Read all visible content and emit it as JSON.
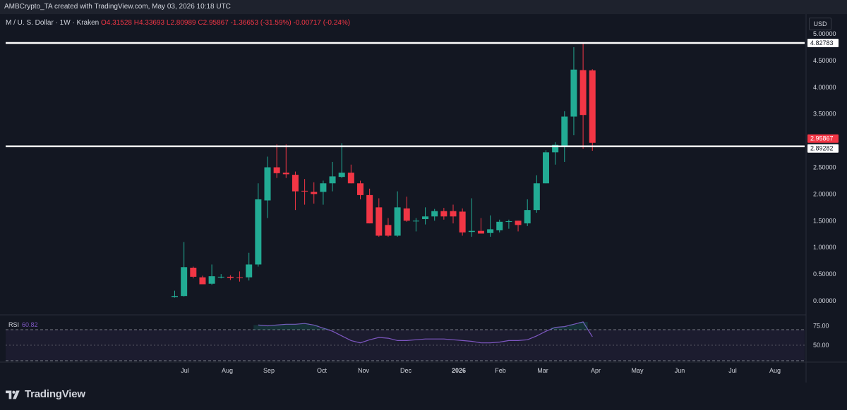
{
  "header": {
    "attribution": "AMBCrypto_TA created with TradingView.com, May 03, 2026 10:18 UTC"
  },
  "legend": {
    "symbol": "M / U. S. Dollar · 1W · Kraken",
    "open": "O4.31528",
    "high": "H4.33693",
    "low": "L2.80989",
    "close": "C2.95867",
    "change": "-1.36653 (-31.59%)",
    "volume_change": "-0.00717 (-0.24%)"
  },
  "currency_button": "USD",
  "brand": {
    "name": "TradingView"
  },
  "colors": {
    "up": "#22ab94",
    "down": "#f23645",
    "background": "#131722",
    "rsi_line": "#7e57c2"
  },
  "chart_data": [
    {
      "type": "candlestick",
      "title": "",
      "xlabel": "",
      "ylabel": "",
      "ylim": [
        -0.1,
        5.0
      ],
      "x_tick_labels": [
        "Jul",
        "Aug",
        "Sep",
        "Oct",
        "Nov",
        "Dec",
        "2026",
        "Feb",
        "Mar",
        "Apr",
        "May",
        "Jun",
        "Jul",
        "Aug"
      ],
      "y_tick_labels": [
        "0.00000",
        "0.50000",
        "1.00000",
        "1.50000",
        "2.00000",
        "2.50000",
        "3.50000",
        "4.00000",
        "4.50000",
        "5.00000"
      ],
      "y_tick_values": [
        0,
        0.5,
        1,
        1.5,
        2,
        2.5,
        3.5,
        4,
        4.5,
        5
      ],
      "price_labels": [
        {
          "text": "4.82783",
          "value": 4.82783,
          "style": "white"
        },
        {
          "text": "2.95867",
          "value": 2.95867,
          "style": "red"
        },
        {
          "text": "2.89282",
          "value": 2.89282,
          "style": "white"
        }
      ],
      "horizontal_lines": [
        4.82783,
        2.89282
      ],
      "candles": [
        {
          "o": 0.07,
          "h": 0.19,
          "l": 0.06,
          "c": 0.09
        },
        {
          "o": 0.09,
          "h": 1.1,
          "l": 0.08,
          "c": 0.63
        },
        {
          "o": 0.62,
          "h": 0.64,
          "l": 0.42,
          "c": 0.45
        },
        {
          "o": 0.44,
          "h": 0.47,
          "l": 0.31,
          "c": 0.31
        },
        {
          "o": 0.32,
          "h": 0.68,
          "l": 0.3,
          "c": 0.46
        },
        {
          "o": 0.44,
          "h": 0.5,
          "l": 0.42,
          "c": 0.45
        },
        {
          "o": 0.45,
          "h": 0.48,
          "l": 0.39,
          "c": 0.43
        },
        {
          "o": 0.44,
          "h": 0.55,
          "l": 0.36,
          "c": 0.43
        },
        {
          "o": 0.44,
          "h": 0.9,
          "l": 0.38,
          "c": 0.68
        },
        {
          "o": 0.68,
          "h": 2.2,
          "l": 0.64,
          "c": 1.9
        },
        {
          "o": 1.88,
          "h": 2.7,
          "l": 1.55,
          "c": 2.5
        },
        {
          "o": 2.5,
          "h": 2.93,
          "l": 2.3,
          "c": 2.39
        },
        {
          "o": 2.4,
          "h": 2.93,
          "l": 2.3,
          "c": 2.37
        },
        {
          "o": 2.36,
          "h": 2.42,
          "l": 1.7,
          "c": 2.05
        },
        {
          "o": 2.06,
          "h": 2.28,
          "l": 1.8,
          "c": 2.05
        },
        {
          "o": 2.04,
          "h": 2.22,
          "l": 1.82,
          "c": 2.0
        },
        {
          "o": 2.04,
          "h": 2.25,
          "l": 1.8,
          "c": 2.2
        },
        {
          "o": 2.2,
          "h": 2.6,
          "l": 2.05,
          "c": 2.33
        },
        {
          "o": 2.32,
          "h": 2.95,
          "l": 2.3,
          "c": 2.4
        },
        {
          "o": 2.4,
          "h": 2.55,
          "l": 2.2,
          "c": 2.2
        },
        {
          "o": 2.2,
          "h": 2.25,
          "l": 1.9,
          "c": 1.98
        },
        {
          "o": 1.98,
          "h": 2.1,
          "l": 1.45,
          "c": 1.45
        },
        {
          "o": 1.75,
          "h": 1.92,
          "l": 1.2,
          "c": 1.22
        },
        {
          "o": 1.42,
          "h": 1.55,
          "l": 1.2,
          "c": 1.22
        },
        {
          "o": 1.22,
          "h": 2.05,
          "l": 1.2,
          "c": 1.75
        },
        {
          "o": 1.73,
          "h": 1.95,
          "l": 1.48,
          "c": 1.5
        },
        {
          "o": 1.5,
          "h": 1.55,
          "l": 1.3,
          "c": 1.5
        },
        {
          "o": 1.53,
          "h": 1.75,
          "l": 1.43,
          "c": 1.58
        },
        {
          "o": 1.58,
          "h": 1.72,
          "l": 1.5,
          "c": 1.68
        },
        {
          "o": 1.68,
          "h": 1.74,
          "l": 1.52,
          "c": 1.58
        },
        {
          "o": 1.68,
          "h": 1.8,
          "l": 1.45,
          "c": 1.58
        },
        {
          "o": 1.67,
          "h": 1.73,
          "l": 1.22,
          "c": 1.28
        },
        {
          "o": 1.29,
          "h": 1.92,
          "l": 1.2,
          "c": 1.31
        },
        {
          "o": 1.31,
          "h": 1.55,
          "l": 1.28,
          "c": 1.26
        },
        {
          "o": 1.27,
          "h": 1.6,
          "l": 1.2,
          "c": 1.34
        },
        {
          "o": 1.32,
          "h": 1.52,
          "l": 1.28,
          "c": 1.48
        },
        {
          "o": 1.48,
          "h": 1.52,
          "l": 1.35,
          "c": 1.49
        },
        {
          "o": 1.5,
          "h": 1.5,
          "l": 1.3,
          "c": 1.42
        },
        {
          "o": 1.45,
          "h": 1.9,
          "l": 1.4,
          "c": 1.7
        },
        {
          "o": 1.7,
          "h": 2.35,
          "l": 1.65,
          "c": 2.2
        },
        {
          "o": 2.2,
          "h": 2.82,
          "l": 2.2,
          "c": 2.78
        },
        {
          "o": 2.78,
          "h": 2.97,
          "l": 2.55,
          "c": 2.92
        },
        {
          "o": 2.9,
          "h": 3.55,
          "l": 2.6,
          "c": 3.45
        },
        {
          "o": 3.45,
          "h": 4.75,
          "l": 3.1,
          "c": 4.33
        },
        {
          "o": 4.32,
          "h": 4.83,
          "l": 2.85,
          "c": 3.48
        },
        {
          "o": 4.31528,
          "h": 4.33693,
          "l": 2.80989,
          "c": 2.95867
        }
      ]
    },
    {
      "type": "line",
      "title": "",
      "name": "RSI",
      "value_label": "60.82",
      "ylim": [
        30,
        80
      ],
      "y_tick_labels": [
        "75.00",
        "50.00"
      ],
      "y_tick_values": [
        75,
        50
      ],
      "band": [
        30,
        70
      ],
      "values": [
        null,
        null,
        null,
        null,
        null,
        null,
        null,
        null,
        null,
        76,
        75,
        76,
        77,
        77,
        78,
        76,
        72,
        68,
        62,
        56,
        53,
        57,
        60,
        59,
        56,
        56,
        57,
        58,
        58,
        58,
        57,
        56,
        55,
        53,
        53,
        54,
        56,
        56,
        57,
        62,
        68,
        73,
        74,
        77,
        80,
        60.82
      ]
    }
  ]
}
